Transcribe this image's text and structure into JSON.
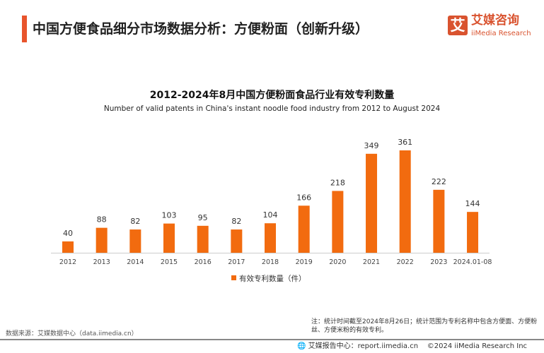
{
  "header": {
    "title": "中国方便食品细分市场数据分析：方便粉面（创新升级）"
  },
  "logo": {
    "mark": "艾",
    "cn": "艾媒咨询",
    "en": "iiMedia Research"
  },
  "chart_data": {
    "type": "bar",
    "title": "2012-2024年8月中国方便粉面食品行业有效专利数量",
    "subtitle": "Number of valid patents in China's instant noodle food industry from 2012 to August 2024",
    "categories": [
      "2012",
      "2013",
      "2014",
      "2015",
      "2016",
      "2017",
      "2018",
      "2019",
      "2020",
      "2021",
      "2022",
      "2023",
      "2024.01-08"
    ],
    "series": [
      {
        "name": "有效专利数量（件）",
        "values": [
          40,
          88,
          82,
          103,
          95,
          82,
          104,
          166,
          218,
          349,
          361,
          222,
          144
        ],
        "color": "#f26b0f"
      }
    ],
    "ylim": [
      0,
      400
    ],
    "grid": false,
    "legend": "bottom"
  },
  "footer": {
    "note": "注：统计时间截至2024年8月26日；统计范围为专利名称中包含方便面、方便粉丝、方便米粉的有效专利。",
    "source": "数据来源：艾媒数据中心（data.iimedia.cn）",
    "report": "🌐 艾媒报告中心：report.iimedia.cn",
    "copyright": "©2024  iiMedia Research Inc"
  }
}
